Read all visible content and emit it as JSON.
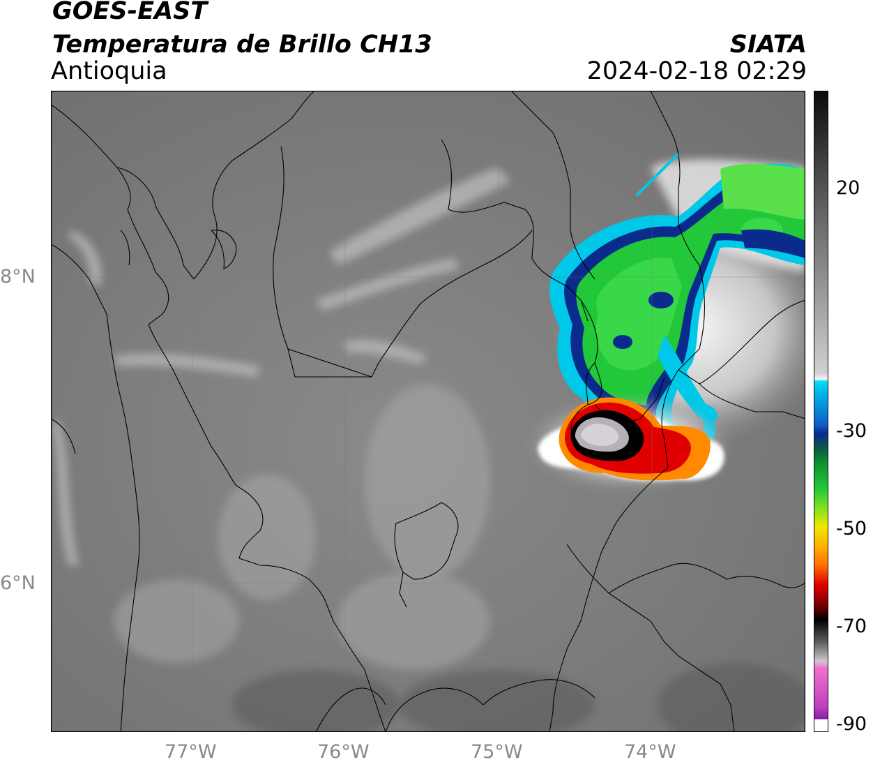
{
  "header": {
    "satellite": "GOES-EAST",
    "product": "Temperatura de Brillo CH13",
    "region": "Antioquia",
    "agency": "SIATA",
    "datetime": "2024-02-18 02:29"
  },
  "map": {
    "lat_labels": [
      "8°N",
      "6°N"
    ],
    "lon_labels": [
      "77°W",
      "76°W",
      "75°W",
      "74°W"
    ],
    "lon_range": [
      -77.95,
      -73.0
    ],
    "lat_range": [
      4.95,
      9.15
    ]
  },
  "colorbar": {
    "tick_labels": [
      "20",
      "-30",
      "-50",
      "-70",
      "-90"
    ],
    "tick_values": [
      20,
      -30,
      -50,
      -70,
      -90
    ],
    "colors": {
      "warm_gray": "#4a4a4a",
      "cold_white": "#f2f2f2",
      "cyan": "#00c8e8",
      "blue": "#0a2a8c",
      "green": "#22c83a",
      "yellow": "#f0e800",
      "orange": "#ff8a00",
      "red": "#e00000",
      "black": "#000000",
      "magenta": "#c040c0"
    }
  }
}
